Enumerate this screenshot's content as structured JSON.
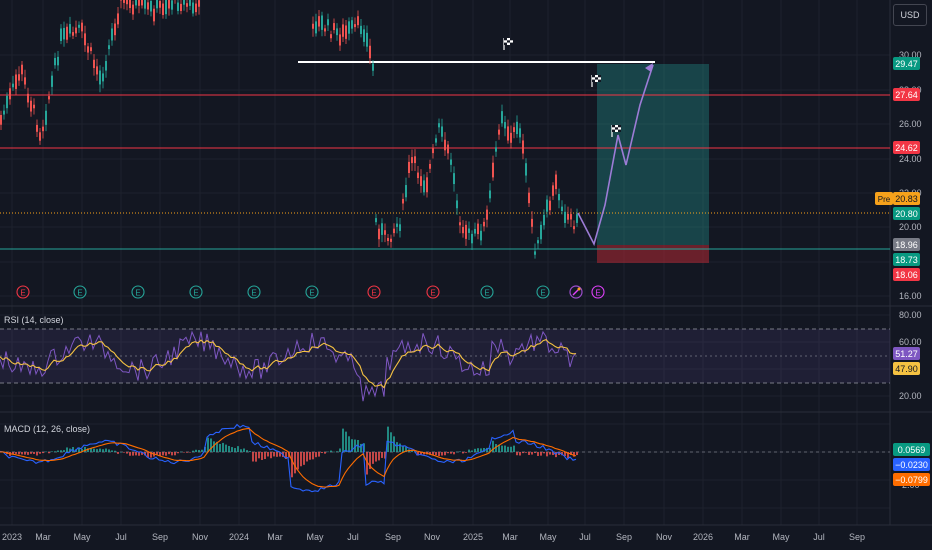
{
  "currency": "USD",
  "colors": {
    "background": "#131722",
    "grid": "#1e222d",
    "up_candle": "#26a69a",
    "down_candle": "#ef5350",
    "resistance_line": "#f23645",
    "support_line": "#26a69a",
    "target_zone": "#26a69a",
    "stop_zone": "#b22833",
    "rsi_line": "#7e57c2",
    "rsi_ma": "#f5c242",
    "macd_line": "#2962ff",
    "signal_line": "#ff6d00"
  },
  "price_pane": {
    "axis_ticks": [
      "30.00",
      "28.00",
      "26.00",
      "24.00",
      "22.00",
      "20.00",
      "16.00"
    ],
    "levels": [
      {
        "value": "29.47",
        "name": "target",
        "color": "#089981"
      },
      {
        "value": "27.64",
        "name": "resistance-2",
        "color": "#f23645"
      },
      {
        "value": "24.62",
        "name": "resistance-1",
        "color": "#f23645"
      },
      {
        "value": "20.83",
        "name": "premarket",
        "color": "#f7a21b",
        "prefix": "Pre"
      },
      {
        "value": "20.80",
        "name": "last-price",
        "color": "#089981"
      },
      {
        "value": "18.96",
        "name": "support",
        "color": "#787b86"
      },
      {
        "value": "18.73",
        "name": "entry",
        "color": "#089981"
      },
      {
        "value": "18.06",
        "name": "stop",
        "color": "#f23645"
      }
    ],
    "earnings_markers": [
      "E",
      "E",
      "E",
      "E",
      "E",
      "E",
      "E",
      "E",
      "E",
      "E",
      "E",
      "E"
    ]
  },
  "rsi_pane": {
    "title": "RSI (14, close)",
    "axis_ticks": [
      "80.00",
      "60.00",
      "20.00"
    ],
    "values": [
      {
        "value": "51.27",
        "name": "rsi",
        "color": "#7e57c2"
      },
      {
        "value": "47.90",
        "name": "rsi-ma",
        "color": "#f5c242"
      }
    ]
  },
  "macd_pane": {
    "title": "MACD (12, 26, close)",
    "axis_ticks": [
      "-2.00"
    ],
    "values": [
      {
        "value": "0.0569",
        "name": "histogram",
        "color": "#089981"
      },
      {
        "value": "−0.0230",
        "name": "macd",
        "color": "#2962ff"
      },
      {
        "value": "−0.0799",
        "name": "signal",
        "color": "#ff6d00"
      }
    ]
  },
  "time_axis": [
    "2023",
    "Mar",
    "May",
    "Jul",
    "Sep",
    "Nov",
    "2024",
    "Mar",
    "May",
    "Jul",
    "Sep",
    "Nov",
    "2025",
    "Mar",
    "May",
    "Jul",
    "Sep",
    "Nov",
    "2026",
    "Mar",
    "May",
    "Jul",
    "Sep"
  ]
}
